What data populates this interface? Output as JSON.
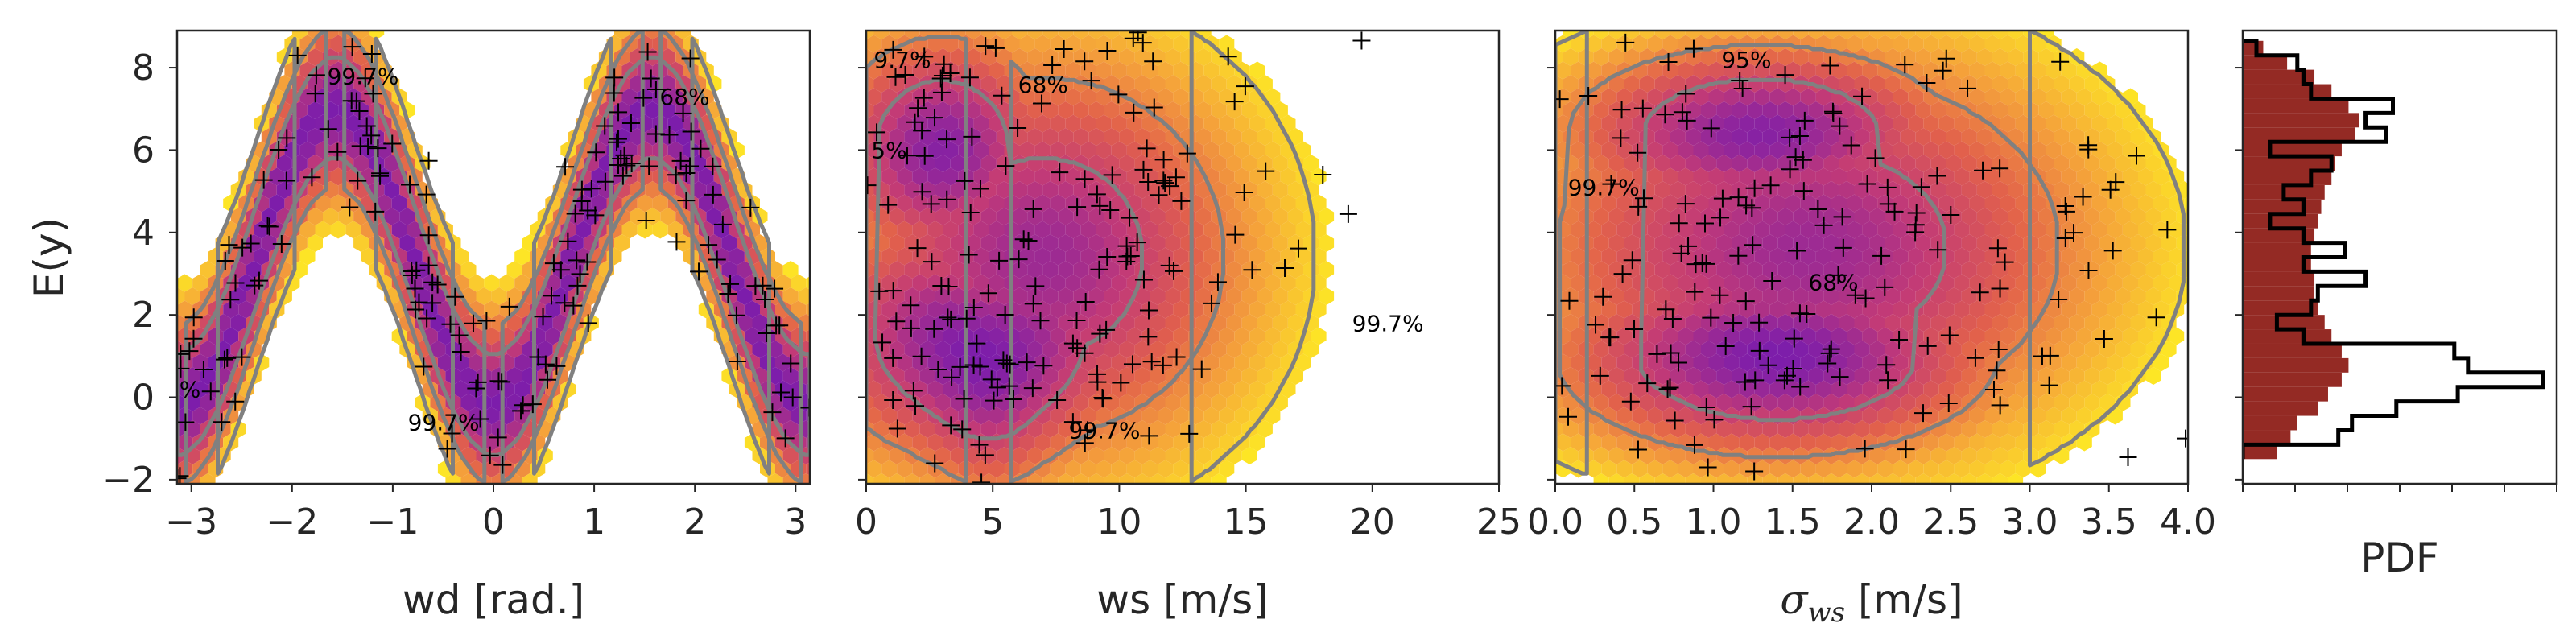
{
  "colors": {
    "hex_low": "#fde725",
    "hex_mid1": "#f5a33a",
    "hex_mid2": "#e2614b",
    "hex_mid3": "#c23a77",
    "hex_high": "#7c1dab",
    "contour": "#808080",
    "marker": "#000000",
    "hist_fill": "#942a24",
    "hist_step": "#000000"
  },
  "ylabel_shared": "E(y)",
  "chart_data": [
    {
      "type": "scatter",
      "subtype": "hexbin-density-with-contours",
      "xlabel": "wd [rad.]",
      "ylabel": "E(y)",
      "xlim": [
        -3.14159,
        3.14159
      ],
      "ylim": [
        -2.1,
        8.9
      ],
      "x_ticks": [
        -3,
        -2,
        -1,
        0,
        1,
        2,
        3
      ],
      "x_tick_labels": [
        "−3",
        "−2",
        "−1",
        "0",
        "1",
        "2",
        "3"
      ],
      "y_ticks": [
        -2,
        0,
        2,
        4,
        6,
        8
      ],
      "y_tick_labels": [
        "−2",
        "0",
        "2",
        "4",
        "6",
        "8"
      ],
      "annotations": [
        {
          "text": "99.7%",
          "x": -1.65,
          "y": 7.6
        },
        {
          "text": "68%",
          "x": 1.65,
          "y": 7.1
        },
        {
          "text": "99.7%",
          "x": -0.85,
          "y": -0.8
        },
        {
          "text": "%",
          "x": -3.12,
          "y": 0.0
        }
      ],
      "contour_levels": [
        "68%",
        "95%",
        "99.7%"
      ],
      "density_model": "3.5 + 3.5*sin(-x)... band following 3.5 - 3.5*cos(2x)"
    },
    {
      "type": "scatter",
      "subtype": "hexbin-density-with-contours",
      "xlabel": "ws [m/s]",
      "xlim": [
        0,
        25
      ],
      "ylim": [
        -2.1,
        8.9
      ],
      "x_ticks": [
        0,
        5,
        10,
        15,
        20,
        25
      ],
      "x_tick_labels": [
        "0",
        "5",
        "10",
        "15",
        "20",
        "25"
      ],
      "annotations": [
        {
          "text": "9.7%",
          "x": 0.3,
          "y": 8.0
        },
        {
          "text": "68%",
          "x": 6.0,
          "y": 7.4
        },
        {
          "text": "5%",
          "x": 0.2,
          "y": 5.8
        },
        {
          "text": "99.7%",
          "x": 19.2,
          "y": 1.6
        },
        {
          "text": "99.7%",
          "x": 8.0,
          "y": -1.0
        }
      ]
    },
    {
      "type": "scatter",
      "subtype": "hexbin-density-with-contours",
      "xlabel": "σ_ws [m/s]",
      "xlim": [
        0.0,
        4.0
      ],
      "ylim": [
        -2.1,
        8.9
      ],
      "x_ticks": [
        0.0,
        0.5,
        1.0,
        1.5,
        2.0,
        2.5,
        3.0,
        3.5,
        4.0
      ],
      "x_tick_labels": [
        "0.0",
        "0.5",
        "1.0",
        "1.5",
        "2.0",
        "2.5",
        "3.0",
        "3.5",
        "4.0"
      ],
      "annotations": [
        {
          "text": "95%",
          "x": 1.05,
          "y": 8.0
        },
        {
          "text": "99.7%",
          "x": 0.08,
          "y": 4.9
        },
        {
          "text": "68%",
          "x": 1.6,
          "y": 2.6
        }
      ]
    },
    {
      "type": "bar",
      "subtype": "horizontal-histogram",
      "xlabel": "PDF",
      "ylim": [
        -2.1,
        8.9
      ],
      "bins_y_start": -1.5,
      "bin_width": 0.35,
      "filled_values": [
        0.1,
        0.14,
        0.16,
        0.22,
        0.25,
        0.29,
        0.31,
        0.29,
        0.26,
        0.24,
        0.22,
        0.21,
        0.21,
        0.2,
        0.2,
        0.21,
        0.22,
        0.23,
        0.24,
        0.26,
        0.27,
        0.29,
        0.33,
        0.34,
        0.31,
        0.26,
        0.21,
        0.13,
        0.06
      ],
      "step_values": [
        0.0,
        0.28,
        0.32,
        0.45,
        0.63,
        0.88,
        0.66,
        0.62,
        0.18,
        0.1,
        0.2,
        0.22,
        0.36,
        0.18,
        0.3,
        0.18,
        0.08,
        0.18,
        0.12,
        0.2,
        0.26,
        0.08,
        0.42,
        0.36,
        0.44,
        0.2,
        0.18,
        0.16,
        0.04
      ]
    }
  ]
}
